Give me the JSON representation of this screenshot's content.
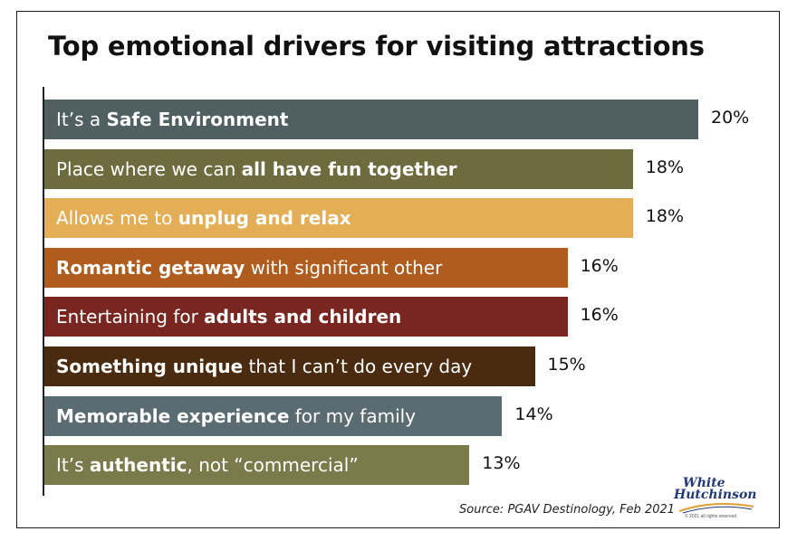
{
  "chart_data": {
    "type": "bar",
    "orientation": "horizontal",
    "title": "Top emotional drivers for visiting attractions",
    "xlim": [
      0,
      20
    ],
    "grid": false,
    "legend": "none",
    "bars": [
      {
        "pre": "It’s a ",
        "bold": "Safe Environment",
        "post": "",
        "value": 20,
        "value_label": "20%",
        "color": "#4f5f62"
      },
      {
        "pre": "Place where we can ",
        "bold": "all have fun together",
        "post": "",
        "value": 18,
        "value_label": "18%",
        "color": "#6e6c3e"
      },
      {
        "pre": "Allows me to ",
        "bold": "unplug and relax",
        "post": "",
        "value": 18,
        "value_label": "18%",
        "color": "#e3ae55"
      },
      {
        "pre": "",
        "bold": "Romantic getaway",
        "post": " with significant other",
        "value": 16,
        "value_label": "16%",
        "color": "#b05c1f"
      },
      {
        "pre": "Entertaining for ",
        "bold": "adults and children",
        "post": "",
        "value": 16,
        "value_label": "16%",
        "color": "#7a2620"
      },
      {
        "pre": "",
        "bold": "Something unique",
        "post": " that I can’t do every day",
        "value": 15,
        "value_label": "15%",
        "color": "#4a2b10"
      },
      {
        "pre": "",
        "bold": "Memorable experience",
        "post": " for my family",
        "value": 14,
        "value_label": "14%",
        "color": "#5b6b72"
      },
      {
        "pre": "It’s ",
        "bold": "authentic",
        "post": ", not “commercial”",
        "value": 13,
        "value_label": "13%",
        "color": "#7b7a4a"
      }
    ]
  },
  "source": "Source: PGAV Destinology, Feb 2021",
  "logo": {
    "line1": "White",
    "line2": "Hutchinson",
    "tagline": "© 2021 all rights reserved"
  }
}
